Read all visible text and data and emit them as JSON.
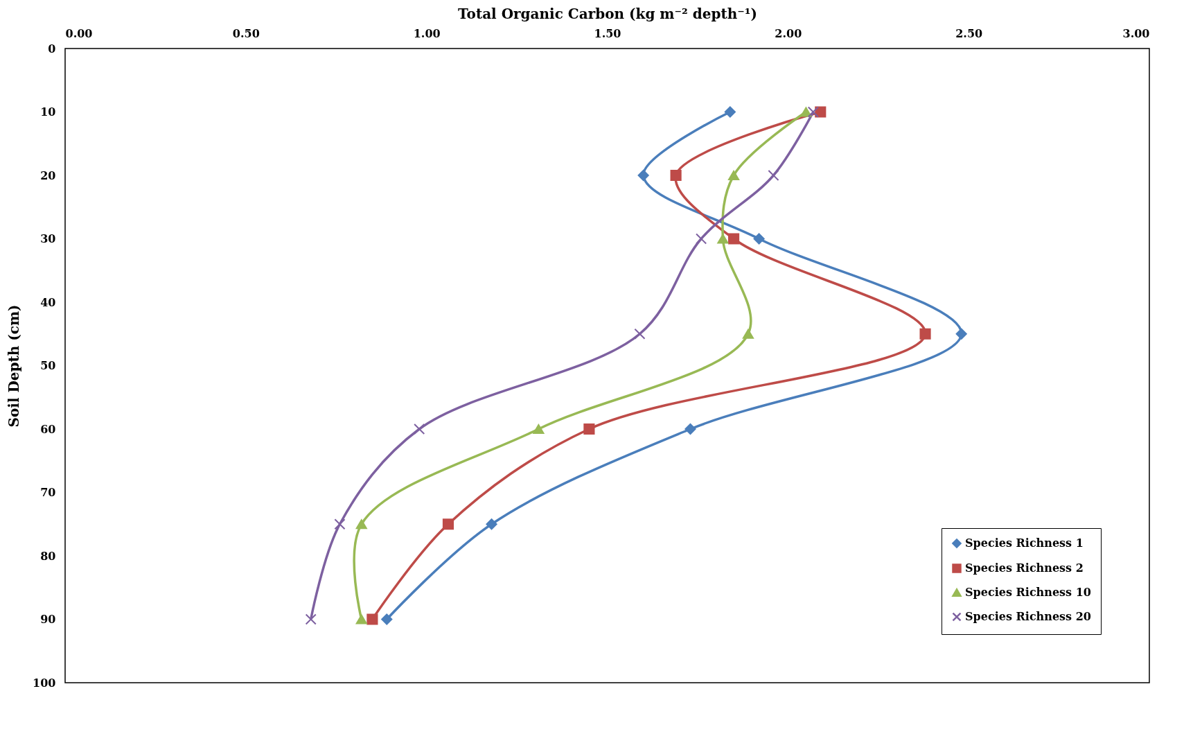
{
  "chart_data": {
    "type": "line",
    "xlabel": "Total Organic Carbon (kg m⁻² depth⁻¹)",
    "ylabel": "Soil Depth (cm)",
    "xlim": [
      0,
      3
    ],
    "xticks": [
      {
        "value": 0,
        "label": "0.00"
      },
      {
        "value": 0.5,
        "label": "0.50"
      },
      {
        "value": 1,
        "label": "1.00"
      },
      {
        "value": 1.5,
        "label": "1.50"
      },
      {
        "value": 2,
        "label": "2.00"
      },
      {
        "value": 2.5,
        "label": "2.50"
      },
      {
        "value": 3,
        "label": "3.00"
      }
    ],
    "ylim": [
      100,
      0
    ],
    "yticks": [
      0,
      10,
      20,
      30,
      40,
      50,
      60,
      70,
      80,
      90,
      100
    ],
    "grid": false,
    "legend": "bottom right",
    "series": [
      {
        "name": "Species Richness 1",
        "color": "#4a7ebb",
        "marker": "diamond",
        "x": [
          1.84,
          1.6,
          1.92,
          2.48,
          1.73,
          1.18,
          0.89
        ],
        "values": [
          10,
          20,
          30,
          45,
          60,
          75,
          90
        ]
      },
      {
        "name": "Species Richness 2",
        "color": "#be4b48",
        "marker": "square",
        "x": [
          2.09,
          1.69,
          1.85,
          2.38,
          1.45,
          1.06,
          0.85
        ],
        "values": [
          10,
          20,
          30,
          45,
          60,
          75,
          90
        ]
      },
      {
        "name": "Species Richness 10",
        "color": "#98b954",
        "marker": "triangle",
        "x": [
          2.05,
          1.85,
          1.82,
          1.89,
          1.31,
          0.82,
          0.82
        ],
        "values": [
          10,
          20,
          30,
          45,
          60,
          75,
          90
        ]
      },
      {
        "name": "Species Richness 20",
        "color": "#7d60a0",
        "marker": "cross",
        "x": [
          2.07,
          1.96,
          1.76,
          1.59,
          0.98,
          0.76,
          0.68
        ],
        "values": [
          10,
          20,
          30,
          45,
          60,
          75,
          90
        ]
      }
    ]
  }
}
